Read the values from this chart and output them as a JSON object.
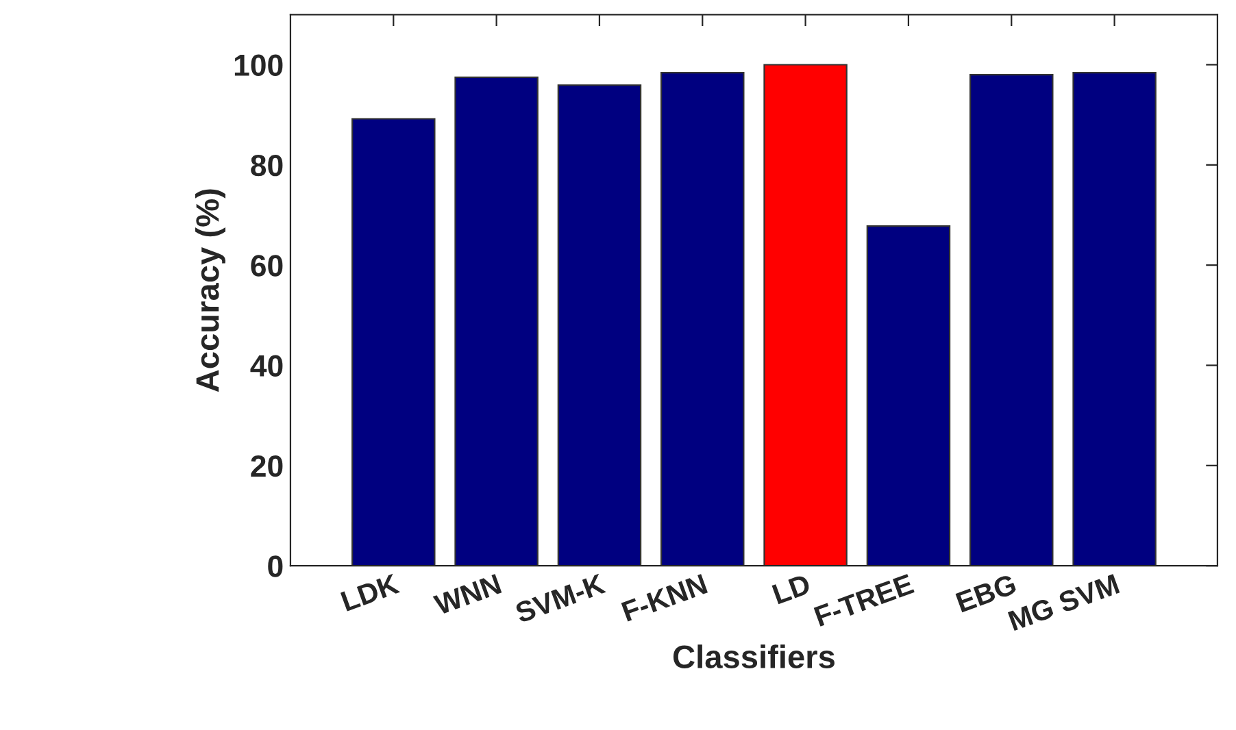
{
  "chart_data": {
    "type": "bar",
    "xlabel": "Classifiers",
    "ylabel": "Accuracy (%)",
    "categories": [
      "LDK",
      "WNN",
      "SVM-K",
      "F-KNN",
      "LD",
      "F-TREE",
      "EBG",
      "MG SVM"
    ],
    "values": [
      89.2,
      97.5,
      95.9,
      98.4,
      100,
      67.8,
      98.0,
      98.4
    ],
    "colors": [
      "#000080",
      "#000080",
      "#000080",
      "#000080",
      "#ff0000",
      "#000080",
      "#000080",
      "#000080"
    ],
    "ylim": [
      0,
      110
    ],
    "yticks": [
      0,
      20,
      40,
      60,
      80,
      100
    ],
    "grid": false
  }
}
